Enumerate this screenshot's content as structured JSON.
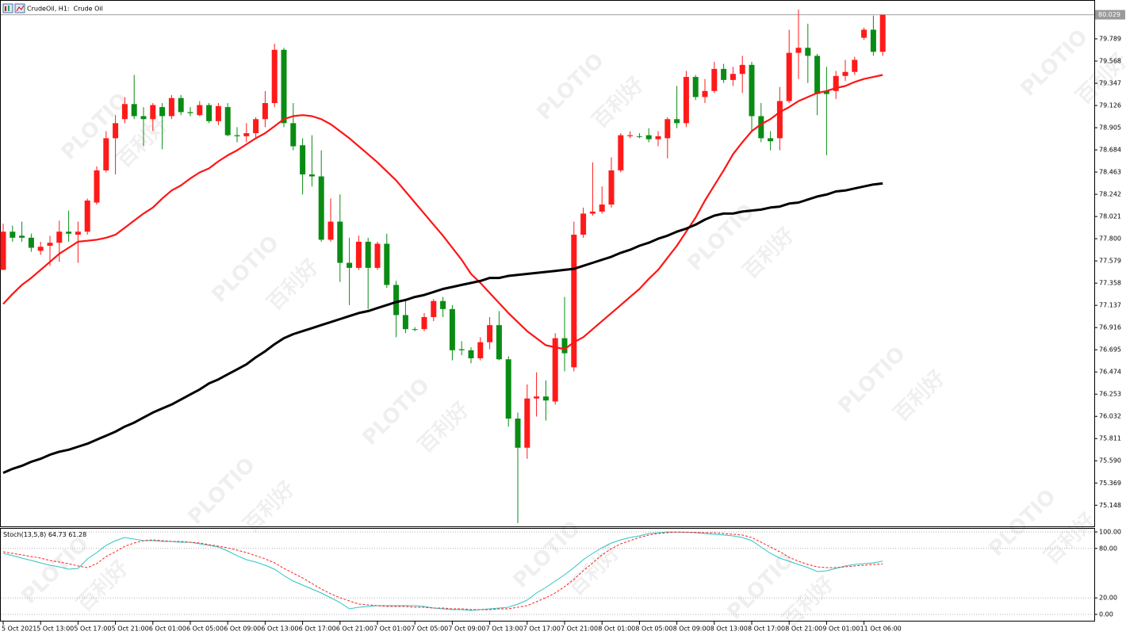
{
  "chart_data": [
    {
      "type": "candlestick",
      "title": "CrudeOil, H1:  Crude Oil",
      "categories": [
        "5 Oct 2021",
        null,
        null,
        null,
        "5 Oct 13:00",
        null,
        null,
        null,
        "5 Oct 17:00",
        null,
        null,
        null,
        "5 Oct 21:00",
        null,
        null,
        null,
        "6 Oct 01:00",
        null,
        null,
        null,
        "6 Oct 05:00",
        null,
        null,
        null,
        "6 Oct 09:00",
        null,
        null,
        null,
        "6 Oct 13:00",
        null,
        null,
        null,
        "6 Oct 17:00",
        null,
        null,
        null,
        "6 Oct 21:00",
        null,
        null,
        null,
        "7 Oct 01:00",
        null,
        null,
        null,
        "7 Oct 05:00",
        null,
        null,
        null,
        "7 Oct 09:00",
        null,
        null,
        null,
        "7 Oct 13:00",
        null,
        null,
        null,
        "7 Oct 17:00",
        null,
        null,
        null,
        "7 Oct 21:00",
        null,
        null,
        null,
        "8 Oct 01:00",
        null,
        null,
        null,
        "8 Oct 05:00",
        null,
        null,
        null,
        "8 Oct 09:00",
        null,
        null,
        null,
        "8 Oct 13:00",
        null,
        null,
        null,
        "8 Oct 17:00",
        null,
        null,
        null,
        "8 Oct 21:00",
        null,
        null,
        null,
        "9 Oct 01:00",
        null,
        null,
        null,
        "11 Oct 06:00",
        null,
        null
      ],
      "open": [
        77.49,
        77.87,
        77.83,
        77.81,
        77.68,
        77.73,
        77.76,
        77.87,
        77.84,
        77.87,
        78.16,
        78.48,
        78.8,
        78.99,
        79.14,
        79.02,
        78.99,
        79.11,
        79.02,
        79.2,
        79.06,
        79.03,
        79.13,
        78.97,
        79.11,
        78.83,
        78.82,
        78.85,
        78.99,
        79.15,
        79.68,
        78.95,
        78.73,
        78.44,
        78.42,
        77.79,
        77.97,
        77.56,
        77.51,
        77.77,
        77.51,
        77.75,
        77.34,
        77.04,
        76.9,
        76.9,
        77.02,
        77.18,
        77.1,
        76.7,
        76.69,
        76.61,
        76.77,
        76.94,
        76.6,
        76.01,
        75.72,
        76.21,
        76.23,
        76.18,
        76.81,
        76.52,
        77.84,
        78.05,
        78.07,
        78.14,
        78.48,
        78.82,
        78.82,
        78.83,
        78.79,
        78.8,
        78.99,
        78.95,
        79.41,
        79.21,
        79.27,
        79.49,
        79.38,
        79.44,
        79.53,
        79.02,
        78.8,
        78.8,
        79.17,
        79.65,
        79.7,
        79.62,
        79.27,
        79.27,
        79.42,
        79.46,
        79.8,
        79.88,
        79.66
      ],
      "high": [
        77.95,
        77.93,
        77.97,
        77.85,
        77.77,
        77.83,
        77.98,
        78.08,
        77.97,
        78.2,
        78.52,
        78.87,
        79.03,
        79.21,
        79.43,
        79.11,
        79.15,
        79.15,
        79.23,
        79.23,
        79.11,
        79.17,
        79.15,
        79.15,
        79.15,
        78.91,
        78.95,
        79.01,
        79.27,
        79.74,
        79.7,
        79.15,
        78.8,
        78.83,
        78.68,
        78.2,
        78.24,
        77.81,
        77.83,
        77.81,
        77.77,
        77.85,
        77.38,
        77.18,
        76.92,
        77.06,
        77.2,
        77.22,
        77.14,
        76.78,
        76.72,
        76.82,
        77.02,
        77.08,
        76.63,
        76.07,
        76.35,
        76.47,
        76.39,
        76.86,
        77.22,
        77.97,
        78.11,
        78.56,
        78.32,
        78.61,
        78.85,
        78.87,
        78.85,
        78.9,
        78.87,
        79.01,
        79.32,
        79.47,
        79.43,
        79.39,
        79.56,
        79.54,
        79.51,
        79.62,
        79.56,
        79.15,
        78.87,
        79.31,
        79.88,
        80.08,
        79.94,
        79.64,
        79.51,
        79.47,
        79.58,
        79.61,
        79.9,
        80.02,
        80.03
      ],
      "low": [
        77.49,
        77.77,
        77.77,
        77.67,
        77.64,
        77.53,
        77.57,
        77.77,
        77.56,
        77.84,
        78.14,
        78.46,
        78.44,
        78.95,
        78.99,
        78.72,
        78.87,
        78.69,
        78.99,
        79.03,
        79.02,
        79.02,
        78.95,
        78.93,
        78.82,
        78.76,
        78.76,
        78.8,
        78.91,
        79.11,
        78.91,
        78.68,
        78.24,
        78.32,
        77.77,
        77.77,
        77.37,
        77.14,
        77.49,
        77.1,
        77.49,
        77.31,
        76.82,
        76.86,
        76.88,
        76.88,
        76.98,
        77.02,
        76.59,
        76.64,
        76.56,
        76.59,
        76.7,
        76.59,
        75.93,
        74.97,
        75.61,
        76.03,
        75.99,
        76.15,
        76.48,
        76.48,
        77.81,
        78.03,
        78.05,
        78.11,
        78.46,
        78.8,
        78.8,
        78.76,
        78.72,
        78.6,
        78.9,
        78.91,
        79.18,
        79.15,
        79.25,
        79.35,
        79.32,
        79.25,
        78.87,
        78.76,
        78.68,
        78.68,
        79.15,
        79.39,
        79.35,
        79.03,
        78.63,
        79.19,
        79.37,
        79.43,
        79.78,
        79.62,
        79.62
      ],
      "close": [
        77.87,
        77.81,
        77.81,
        77.71,
        77.72,
        77.76,
        77.87,
        77.85,
        77.87,
        78.18,
        78.48,
        78.8,
        78.95,
        79.14,
        79.02,
        78.99,
        79.13,
        79.02,
        79.2,
        79.06,
        79.05,
        79.13,
        78.97,
        79.12,
        78.83,
        78.82,
        78.85,
        78.99,
        79.15,
        79.68,
        78.95,
        78.72,
        78.44,
        78.42,
        77.79,
        77.97,
        77.56,
        77.51,
        77.77,
        77.51,
        77.75,
        77.34,
        77.04,
        76.9,
        76.9,
        77.02,
        77.18,
        77.1,
        76.69,
        76.69,
        76.61,
        76.77,
        76.94,
        76.6,
        76.01,
        75.72,
        76.21,
        76.23,
        76.19,
        76.81,
        76.66,
        77.84,
        78.05,
        78.07,
        78.14,
        78.48,
        78.83,
        78.83,
        78.82,
        78.79,
        78.82,
        78.99,
        78.95,
        79.41,
        79.21,
        79.27,
        79.49,
        79.38,
        79.44,
        79.53,
        79.02,
        78.8,
        78.77,
        79.17,
        79.65,
        79.7,
        79.62,
        79.24,
        79.24,
        79.42,
        79.46,
        79.58,
        79.88,
        79.66,
        80.029
      ],
      "up_color": "#ff1a1a",
      "down_color": "#0a8c14",
      "lines": [
        {
          "color": "#ff1414",
          "width": 2.2,
          "values": [
            77.15,
            77.25,
            77.34,
            77.41,
            77.49,
            77.57,
            77.65,
            77.71,
            77.77,
            77.78,
            77.79,
            77.81,
            77.84,
            77.91,
            77.98,
            78.05,
            78.11,
            78.2,
            78.28,
            78.33,
            78.4,
            78.46,
            78.5,
            78.57,
            78.63,
            78.68,
            78.74,
            78.8,
            78.85,
            78.92,
            78.99,
            79.02,
            79.03,
            79.02,
            78.99,
            78.94,
            78.87,
            78.8,
            78.72,
            78.64,
            78.56,
            78.47,
            78.38,
            78.27,
            78.16,
            78.05,
            77.94,
            77.83,
            77.71,
            77.59,
            77.45,
            77.36,
            77.26,
            77.16,
            77.06,
            76.97,
            76.88,
            76.81,
            76.74,
            76.72,
            76.7,
            76.77,
            76.82,
            76.9,
            76.98,
            77.06,
            77.14,
            77.22,
            77.3,
            77.4,
            77.49,
            77.61,
            77.73,
            77.87,
            78.01,
            78.18,
            78.33,
            78.48,
            78.64,
            78.76,
            78.87,
            78.94,
            78.99,
            79.06,
            79.11,
            79.17,
            79.21,
            79.25,
            79.27,
            79.3,
            79.32,
            79.36,
            79.39,
            79.41,
            79.43
          ]
        },
        {
          "color": "#000000",
          "width": 3,
          "values": [
            75.47,
            75.51,
            75.54,
            75.58,
            75.61,
            75.65,
            75.68,
            75.7,
            75.73,
            75.76,
            75.8,
            75.84,
            75.88,
            75.93,
            75.97,
            76.02,
            76.07,
            76.11,
            76.15,
            76.2,
            76.25,
            76.3,
            76.36,
            76.4,
            76.45,
            76.5,
            76.55,
            76.62,
            76.68,
            76.75,
            76.81,
            76.85,
            76.88,
            76.91,
            76.94,
            76.97,
            77.0,
            77.03,
            77.06,
            77.08,
            77.11,
            77.14,
            77.17,
            77.19,
            77.22,
            77.24,
            77.27,
            77.3,
            77.32,
            77.34,
            77.36,
            77.38,
            77.41,
            77.41,
            77.43,
            77.44,
            77.45,
            77.46,
            77.47,
            77.48,
            77.49,
            77.5,
            77.53,
            77.56,
            77.59,
            77.62,
            77.66,
            77.69,
            77.73,
            77.76,
            77.8,
            77.83,
            77.87,
            77.9,
            77.94,
            77.99,
            78.03,
            78.05,
            78.05,
            78.07,
            78.08,
            78.09,
            78.11,
            78.12,
            78.15,
            78.16,
            78.19,
            78.22,
            78.24,
            78.27,
            78.28,
            78.3,
            78.32,
            78.34,
            78.35
          ]
        }
      ],
      "ylim": [
        74.945,
        80.152
      ],
      "yticks": [
        79.789,
        79.568,
        79.347,
        79.126,
        78.905,
        78.684,
        78.463,
        78.242,
        78.021,
        {
          "value": 77.8,
          "label": "77.800"
        },
        77.579,
        77.358,
        77.137,
        76.916,
        76.695,
        76.474,
        76.253,
        76.032,
        75.811,
        {
          "value": 75.59,
          "label": "75.590"
        },
        75.369,
        75.148
      ],
      "watermark": [
        "PLOTIO",
        "百利好"
      ]
    },
    {
      "type": "line",
      "title": "Stoch(13,5,8)",
      "series": [
        {
          "color": "#2ec4c4",
          "dash": false,
          "values": [
            74.0,
            71.2,
            68.3,
            65.4,
            62.5,
            59.6,
            57.7,
            54.8,
            55.8,
            67.3,
            75.0,
            83.7,
            89.4,
            93.3,
            91.3,
            89.4,
            89.4,
            88.5,
            88.5,
            87.5,
            87.5,
            85.6,
            83.7,
            81.7,
            76.9,
            71.2,
            66.3,
            63.5,
            59.6,
            54.8,
            47.1,
            40.4,
            35.6,
            30.8,
            26.0,
            20.2,
            14.4,
            6.7,
            8.7,
            9.6,
            10.6,
            10.6,
            10.6,
            10.6,
            10.6,
            9.6,
            7.7,
            6.7,
            5.8,
            5.8,
            4.8,
            5.8,
            6.7,
            7.7,
            8.7,
            12.5,
            17.3,
            26.0,
            32.7,
            40.4,
            48.1,
            56.7,
            66.3,
            74.0,
            80.8,
            86.5,
            90.4,
            93.3,
            95.2,
            98.1,
            99.0,
            100,
            99.8,
            99.6,
            99.0,
            98.1,
            97.1,
            96.2,
            95.2,
            93.3,
            89.4,
            81.7,
            74.0,
            68.3,
            64.4,
            60.6,
            56.7,
            51.9,
            52.9,
            55.8,
            58.7,
            60.6,
            61.5,
            62.5,
            64.73
          ]
        },
        {
          "color": "#ff2020",
          "dash": true,
          "values": [
            76.0,
            74.0,
            72.1,
            70.2,
            68.3,
            65.4,
            63.5,
            61.5,
            58.7,
            56.7,
            61.5,
            70.2,
            76.0,
            82.7,
            86.5,
            89.4,
            90.4,
            89.4,
            88.5,
            88.5,
            87.5,
            86.5,
            84.6,
            82.7,
            80.8,
            77.9,
            75.0,
            71.2,
            67.3,
            62.5,
            55.8,
            50.0,
            44.2,
            37.5,
            30.8,
            25.0,
            20.2,
            16.3,
            12.5,
            11.5,
            10.6,
            9.6,
            9.6,
            9.6,
            8.7,
            8.7,
            7.7,
            7.7,
            6.7,
            6.7,
            5.8,
            5.8,
            5.8,
            6.7,
            6.7,
            8.7,
            10.6,
            15.4,
            20.2,
            26.0,
            33.7,
            42.3,
            52.9,
            62.5,
            72.1,
            79.8,
            85.6,
            89.4,
            93.3,
            96.2,
            98.1,
            99.0,
            99.8,
            99.6,
            99.4,
            99.0,
            99.0,
            98.1,
            97.1,
            96.2,
            93.3,
            87.5,
            81.7,
            76.0,
            69.2,
            64.4,
            60.6,
            57.7,
            56.7,
            56.7,
            57.7,
            58.7,
            59.6,
            60.6,
            61.28
          ]
        }
      ],
      "ylim": [
        -8.65,
        104.8
      ],
      "yticks": [
        {
          "value": 100,
          "label": "100.00"
        },
        {
          "value": 80,
          "label": "80.00"
        },
        {
          "value": 20,
          "label": "20.00"
        },
        {
          "value": 0,
          "label": "0.00"
        }
      ],
      "grid": "dotted"
    }
  ]
}
